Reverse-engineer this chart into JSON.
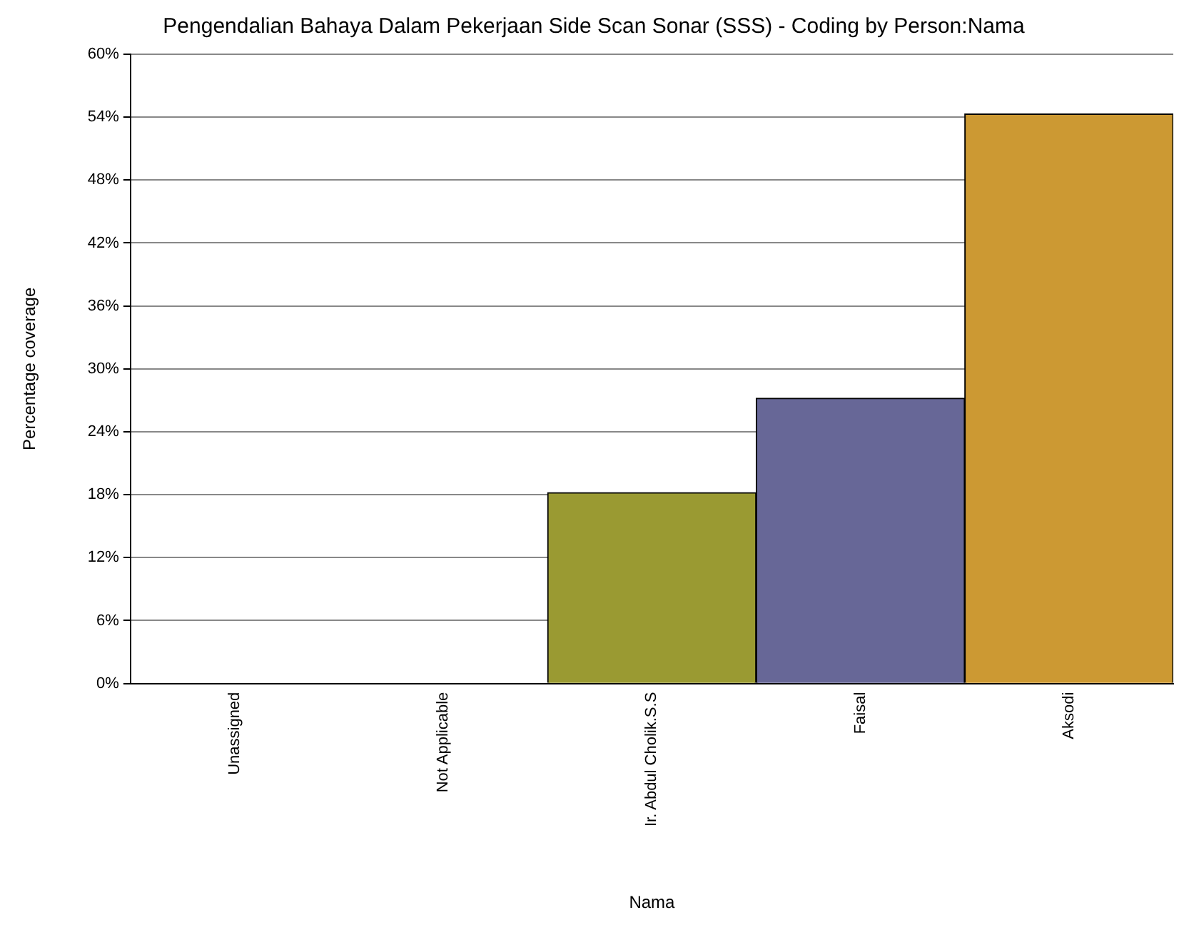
{
  "chart_data": {
    "type": "bar",
    "title": "Pengendalian Bahaya Dalam Pekerjaan Side Scan Sonar (SSS) - Coding by Person:Nama",
    "xlabel": "Nama",
    "ylabel": "Percentage coverage",
    "categories": [
      "Unassigned",
      "Not Applicable",
      "Ir. Abdul Cholik.S.S",
      "Faisal",
      "Aksodi"
    ],
    "values": [
      0,
      0,
      18.2,
      27.2,
      54.3
    ],
    "colors": [
      "#9a9a32",
      "#9a9a32",
      "#9a9a32",
      "#676797",
      "#cc9933"
    ],
    "ylim": [
      0,
      60
    ],
    "yticks": [
      {
        "value": 0,
        "label": "0%"
      },
      {
        "value": 6,
        "label": "6%"
      },
      {
        "value": 12,
        "label": "12%"
      },
      {
        "value": 18,
        "label": "18%"
      },
      {
        "value": 24,
        "label": "24%"
      },
      {
        "value": 30,
        "label": "30%"
      },
      {
        "value": 36,
        "label": "36%"
      },
      {
        "value": 42,
        "label": "42%"
      },
      {
        "value": 48,
        "label": "48%"
      },
      {
        "value": 54,
        "label": "54%"
      },
      {
        "value": 60,
        "label": "60%"
      }
    ],
    "grid": "y",
    "legend": false
  }
}
